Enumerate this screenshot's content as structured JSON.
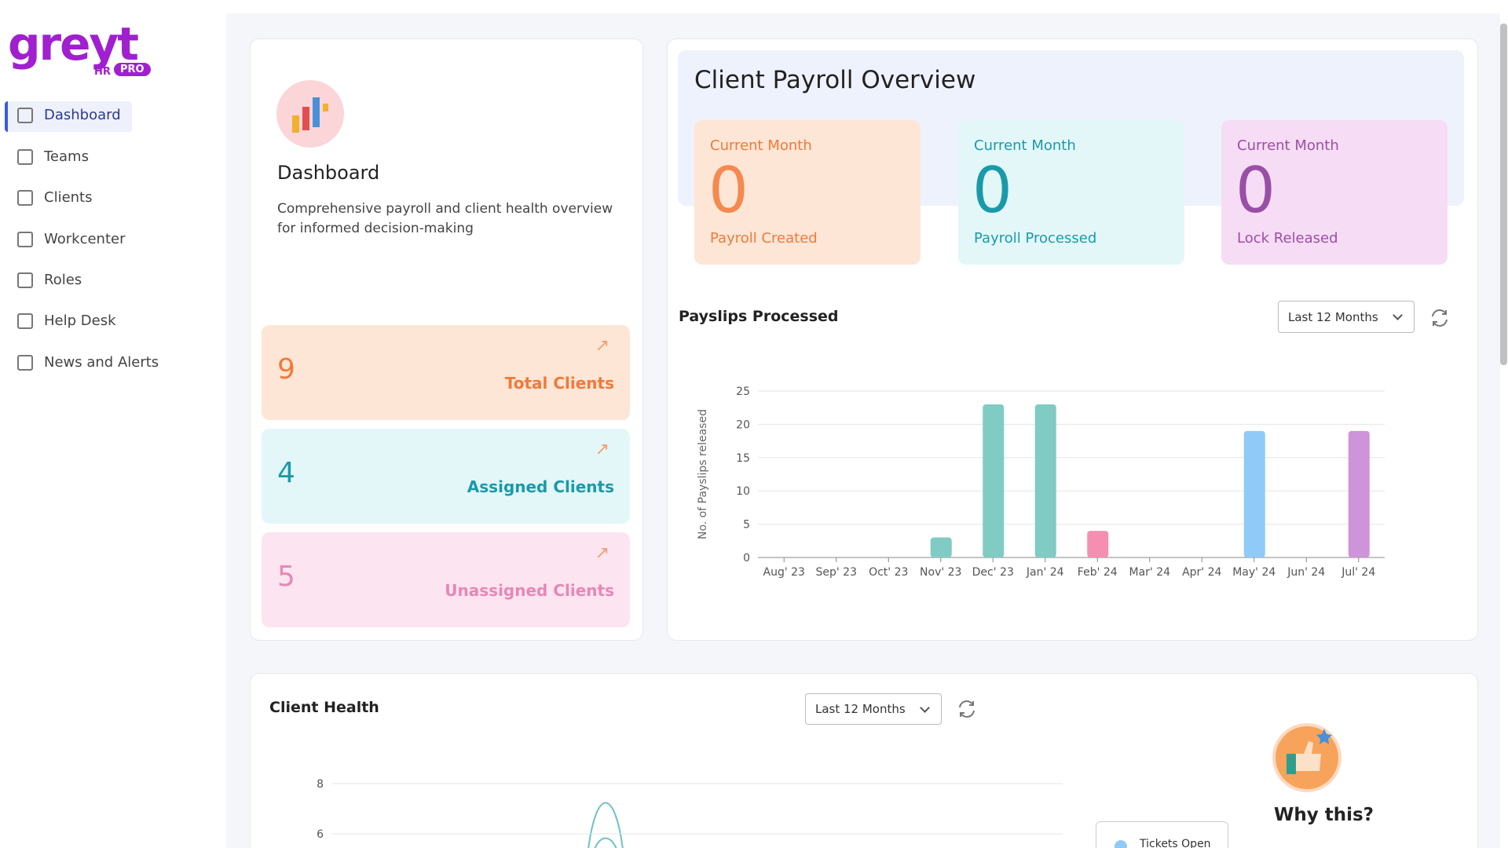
{
  "logo": {
    "text": "greyt",
    "badge_hr": "HR",
    "badge_pro": "PRO"
  },
  "nav": [
    "Dashboard",
    "Teams",
    "Clients",
    "Workcenter",
    "Roles",
    "Help Desk",
    "News and Alerts"
  ],
  "intro": {
    "title": "Dashboard",
    "description": "Comprehensive payroll and client health overview for informed decision-making"
  },
  "client_stats": [
    {
      "value": 9,
      "label": "Total Clients"
    },
    {
      "value": 4,
      "label": "Assigned Clients"
    },
    {
      "value": 5,
      "label": "Unassigned Clients"
    }
  ],
  "payroll_overview": {
    "title": "Client Payroll Overview",
    "cards": [
      {
        "period": "Current Month",
        "value": 0,
        "label": "Payroll Created"
      },
      {
        "period": "Current Month",
        "value": 0,
        "label": "Payroll Processed"
      },
      {
        "period": "Current Month",
        "value": 0,
        "label": "Lock Released"
      }
    ]
  },
  "payslips": {
    "title": "Payslips Processed",
    "filter": "Last 12 Months"
  },
  "client_health": {
    "title": "Client Health",
    "filter": "Last 12 Months",
    "legend": [
      "Tickets Open"
    ],
    "why_title": "Why this?"
  },
  "chart_data": [
    {
      "type": "bar",
      "y_label": "No. of Payslips released",
      "categories": [
        "Aug' 23",
        "Sep' 23",
        "Oct' 23",
        "Nov' 23",
        "Dec' 23",
        "Jan' 24",
        "Feb' 24",
        "Mar' 24",
        "Apr' 24",
        "May' 24",
        "Jun' 24",
        "Jul' 24"
      ],
      "values": [
        0,
        0,
        0,
        3,
        23,
        23,
        4,
        0,
        0,
        19,
        0,
        19
      ],
      "colors": [
        "#80cbc4",
        "#80cbc4",
        "#80cbc4",
        "#80cbc4",
        "#80cbc4",
        "#80cbc4",
        "#f48fb1",
        "#90caf9",
        "#90caf9",
        "#90caf9",
        "#ce93d8",
        "#ce93d8"
      ],
      "ylim": [
        0,
        25
      ],
      "yticks": [
        0,
        5,
        10,
        15,
        20,
        25
      ],
      "grid": true
    },
    {
      "type": "line",
      "ylim": [
        0,
        8
      ],
      "yticks": [
        6,
        8
      ],
      "grid": true
    }
  ]
}
